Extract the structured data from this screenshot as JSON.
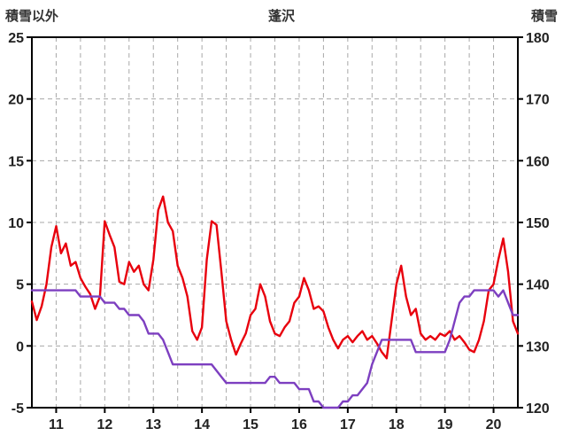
{
  "chart_data": {
    "type": "line",
    "title": "蓬沢",
    "grid": true,
    "x_grid_step": 0.5,
    "x_axis": {
      "min": 10.5,
      "max": 20.5,
      "ticks": [
        11,
        12,
        13,
        14,
        15,
        16,
        17,
        18,
        19,
        20
      ]
    },
    "left_axis": {
      "label": "積雪以外",
      "min": -5,
      "max": 25,
      "ticks": [
        -5,
        0,
        5,
        10,
        15,
        20,
        25
      ]
    },
    "right_axis": {
      "label": "積雪",
      "min": 120,
      "max": 180,
      "ticks": [
        120,
        130,
        140,
        150,
        160,
        170,
        180
      ]
    },
    "colors": {
      "grid": "#a8a8a8",
      "frame": "#000000",
      "tick_text": "#222222"
    },
    "series": [
      {
        "name": "積雪以外",
        "axis": "left",
        "color": "#e8000d",
        "x_start": 10.5,
        "x_step": 0.1,
        "y": [
          3.6,
          2.1,
          3.2,
          5.0,
          8.0,
          9.7,
          7.5,
          8.3,
          6.5,
          6.8,
          5.5,
          4.8,
          4.2,
          3.0,
          4.0,
          10.1,
          9.0,
          8.0,
          5.2,
          5.0,
          6.8,
          6.0,
          6.5,
          5.0,
          4.5,
          7.0,
          11.0,
          12.1,
          10.0,
          9.3,
          6.5,
          5.5,
          4.0,
          1.2,
          0.5,
          1.5,
          7.0,
          10.1,
          9.8,
          6.0,
          2.0,
          0.5,
          -0.7,
          0.2,
          1.0,
          2.5,
          3.0,
          5.0,
          4.0,
          2.0,
          1.0,
          0.8,
          1.5,
          2.0,
          3.5,
          4.0,
          5.5,
          4.5,
          3.0,
          3.2,
          2.8,
          1.5,
          0.5,
          -0.2,
          0.5,
          0.8,
          0.3,
          0.8,
          1.2,
          0.5,
          0.8,
          0.2,
          -0.5,
          -1.0,
          2.0,
          5.0,
          6.5,
          4.0,
          2.5,
          3.0,
          1.0,
          0.5,
          0.8,
          0.5,
          1.0,
          0.8,
          1.2,
          0.5,
          0.8,
          0.3,
          -0.3,
          -0.5,
          0.5,
          2.0,
          4.5,
          5.0,
          7.0,
          8.7,
          6.0,
          2.0,
          1.0
        ]
      },
      {
        "name": "積雪",
        "axis": "right",
        "color": "#7d3fc0",
        "x_start": 10.5,
        "x_step": 0.1,
        "y": [
          139,
          139,
          139,
          139,
          139,
          139,
          139,
          139,
          139,
          139,
          138,
          138,
          138,
          138,
          138,
          137,
          137,
          137,
          136,
          136,
          135,
          135,
          135,
          134,
          132,
          132,
          132,
          131,
          129,
          127,
          127,
          127,
          127,
          127,
          127,
          127,
          127,
          127,
          126,
          125,
          124,
          124,
          124,
          124,
          124,
          124,
          124,
          124,
          124,
          125,
          125,
          124,
          124,
          124,
          124,
          123,
          123,
          123,
          121,
          121,
          120,
          120,
          120,
          120,
          121,
          121,
          122,
          122,
          123,
          124,
          127,
          129,
          131,
          131,
          131,
          131,
          131,
          131,
          131,
          129,
          129,
          129,
          129,
          129,
          129,
          129,
          131,
          134,
          137,
          138,
          138,
          139,
          139,
          139,
          139,
          139,
          138,
          139,
          137,
          135,
          135
        ]
      }
    ]
  }
}
